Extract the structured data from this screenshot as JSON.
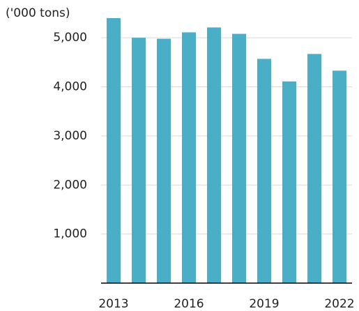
{
  "chart_data": {
    "type": "bar",
    "y_label": "('000 tons)",
    "categories": [
      "2013",
      null,
      null,
      "2016",
      null,
      null,
      "2019",
      null,
      null,
      "2022"
    ],
    "values": [
      5400,
      5000,
      4980,
      5110,
      5210,
      5080,
      4570,
      4110,
      4670,
      4330
    ],
    "color": "#4aaec6",
    "ylim": [
      0,
      5400
    ],
    "yticks": [
      {
        "value": 1000,
        "label": "1,000"
      },
      {
        "value": 2000,
        "label": "2,000"
      },
      {
        "value": 3000,
        "label": "3,000"
      },
      {
        "value": 4000,
        "label": "4,000"
      },
      {
        "value": 5000,
        "label": "5,000"
      }
    ],
    "grid": true
  }
}
